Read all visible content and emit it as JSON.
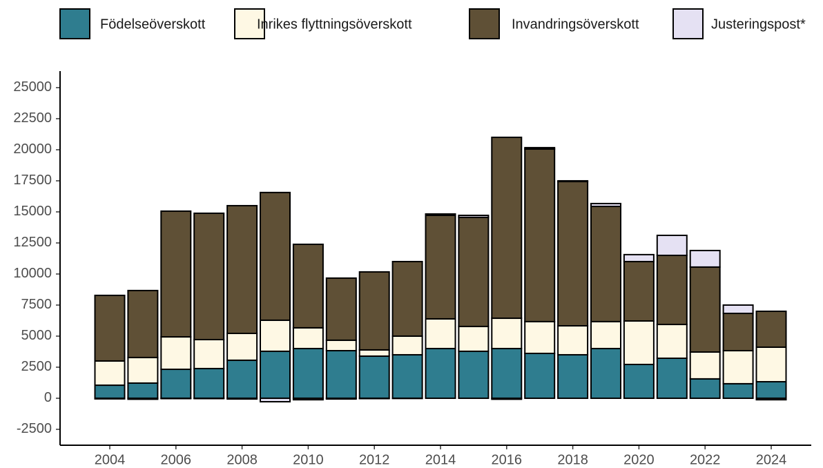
{
  "chart_data": {
    "type": "stacked-bar",
    "categories": [
      "2004",
      null,
      "2006",
      null,
      "2008",
      null,
      "2010",
      null,
      "2012",
      null,
      "2014",
      null,
      "2016",
      null,
      "2018",
      null,
      "2020",
      null,
      "2022",
      null,
      "2024"
    ],
    "series": [
      {
        "name": "Födelseöverskott",
        "color": "#2f7d8f",
        "values": [
          1050,
          1220,
          2330,
          2390,
          3060,
          3780,
          4000,
          3830,
          3390,
          3500,
          4000,
          3780,
          4000,
          3610,
          3500,
          4000,
          2720,
          3220,
          1560,
          1170,
          1330
        ]
      },
      {
        "name": "Inrikes flyttningsöverskott",
        "color": "#fef8e4",
        "values": [
          1950,
          2060,
          2610,
          2330,
          2160,
          2500,
          1670,
          840,
          500,
          1500,
          2390,
          2000,
          2440,
          2560,
          2330,
          2170,
          3500,
          2720,
          2160,
          2660,
          2780
        ]
      },
      {
        "name": "Invandringsöverskott",
        "color": "#5f5036",
        "values": [
          5280,
          5390,
          10120,
          10170,
          10280,
          10280,
          6720,
          5000,
          6280,
          6000,
          8330,
          8780,
          14560,
          13890,
          11610,
          9270,
          4780,
          5560,
          6840,
          3000,
          2890
        ]
      },
      {
        "name": "Justeringspost*",
        "color": "#e5e1f3",
        "values": [
          -50,
          -80,
          -30,
          -30,
          -60,
          -280,
          -120,
          -60,
          -30,
          -20,
          110,
          160,
          -80,
          110,
          60,
          230,
          560,
          1610,
          1330,
          670,
          -120
        ]
      }
    ],
    "ylim": [
      -3780,
      26330
    ],
    "yticks": [
      -2500,
      0,
      2500,
      5000,
      7500,
      10000,
      12500,
      15000,
      17500,
      20000,
      22500,
      25000
    ],
    "grid": false,
    "legend": "top"
  }
}
